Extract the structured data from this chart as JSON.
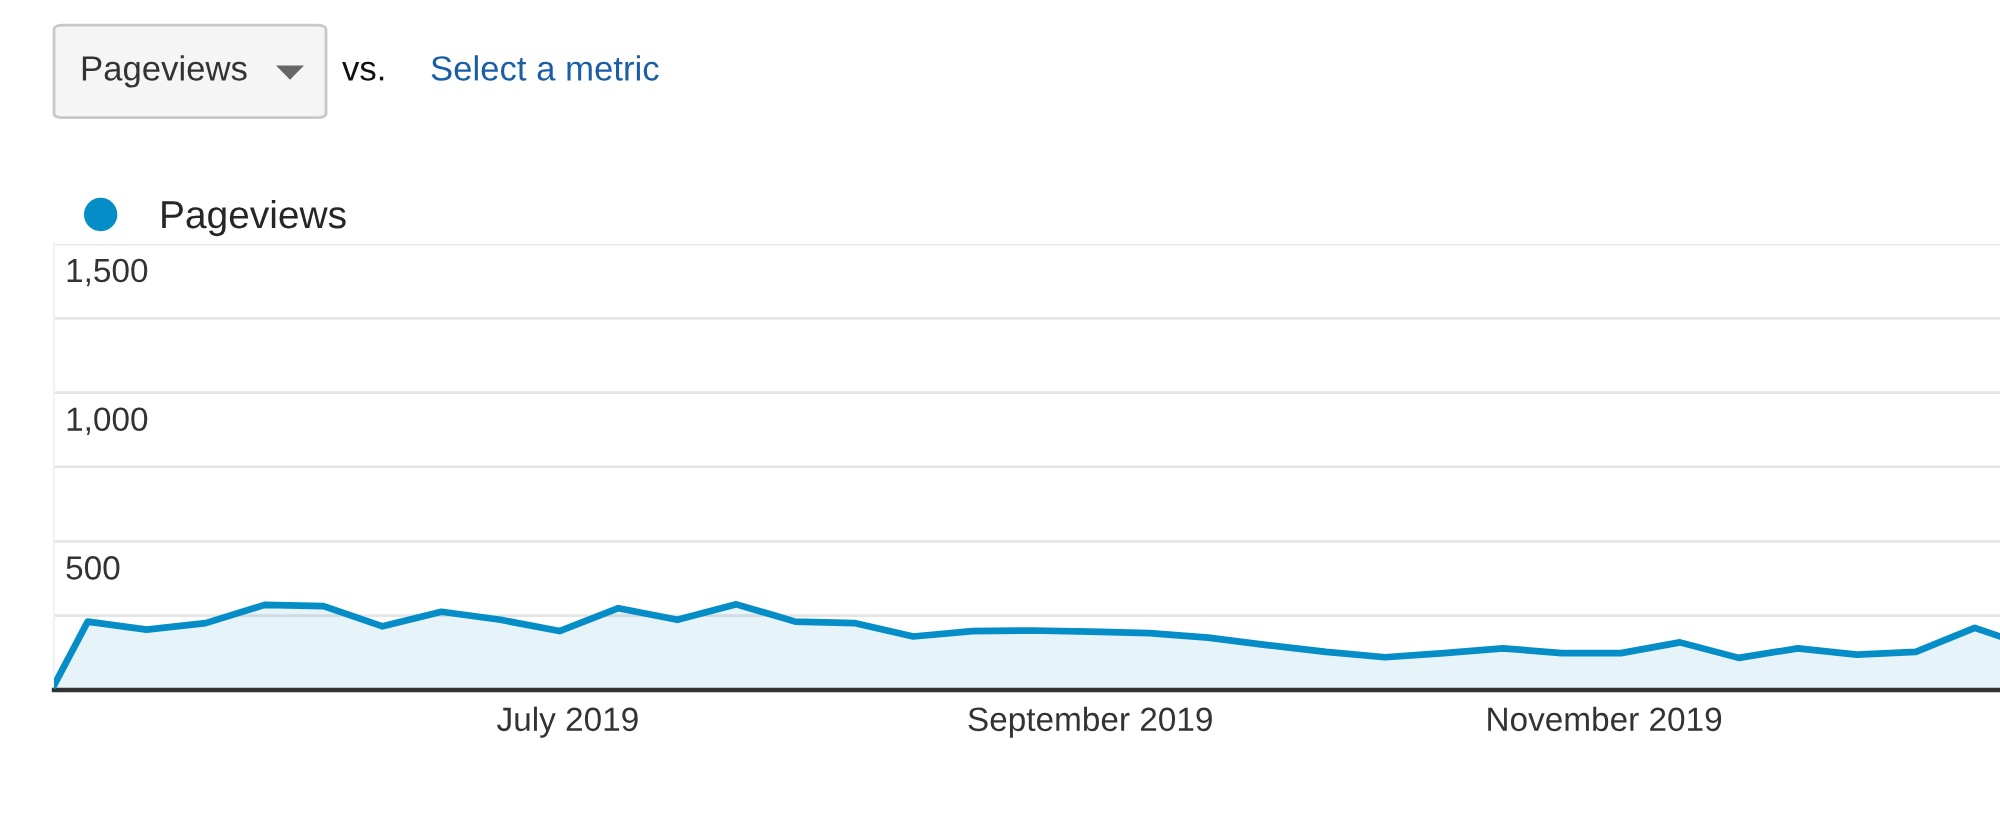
{
  "chart_data": {
    "type": "area",
    "annotations": [
      "Pageviews",
      "vs.",
      "Select a metric"
    ],
    "x": [
      "2019-05-01",
      "2019-05-05",
      "2019-05-12",
      "2019-05-19",
      "2019-05-26",
      "2019-06-02",
      "2019-06-09",
      "2019-06-16",
      "2019-06-23",
      "2019-06-30",
      "2019-07-07",
      "2019-07-14",
      "2019-07-21",
      "2019-07-28",
      "2019-08-04",
      "2019-08-11",
      "2019-08-18",
      "2019-08-25",
      "2019-09-01",
      "2019-09-08",
      "2019-09-15",
      "2019-09-22",
      "2019-09-29",
      "2019-10-06",
      "2019-10-13",
      "2019-10-20",
      "2019-10-27",
      "2019-11-03",
      "2019-11-10",
      "2019-11-17",
      "2019-11-24",
      "2019-12-01",
      "2019-12-08",
      "2019-12-15",
      "2019-12-18"
    ],
    "series": [
      {
        "name": "Pageviews",
        "color": "#058dc7",
        "values": [
          15,
          230,
          203,
          225,
          286,
          282,
          214,
          263,
          236,
          198,
          275,
          236,
          288,
          230,
          225,
          180,
          198,
          200,
          196,
          191,
          176,
          151,
          128,
          110,
          124,
          140,
          124,
          124,
          160,
          108,
          140,
          119,
          128,
          209,
          180
        ]
      }
    ],
    "xlim": [
      "2019-05-01",
      "2019-12-18"
    ],
    "xticks": [
      {
        "value": "2019-07-01",
        "label": "July 2019"
      },
      {
        "value": "2019-09-01",
        "label": "September 2019"
      },
      {
        "value": "2019-11-01",
        "label": "November 2019"
      }
    ],
    "ylim": [
      0,
      1500
    ],
    "yticks": [
      {
        "value": 250,
        "label": null
      },
      500,
      {
        "value": 750,
        "label": null
      },
      {
        "value": 1000,
        "label": "1,000"
      },
      {
        "value": 1250,
        "label": null
      },
      {
        "value": 1500,
        "label": "1,500"
      }
    ],
    "grid": "y",
    "legend": "top left",
    "marker": "none",
    "line_style": "solid"
  }
}
